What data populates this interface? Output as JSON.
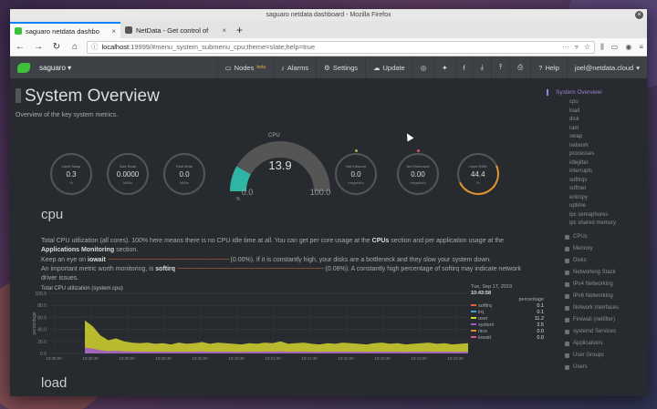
{
  "browser": {
    "window_title": "saguaro netdata dashboard - Mozilla Firefox",
    "tabs": [
      {
        "label": "saguaro netdata dashbo",
        "active": true
      },
      {
        "label": "NetData - Get control of",
        "active": false
      }
    ],
    "url_host": "localhost",
    "url_rest": ":19999/#menu_system_submenu_cpu;theme=slate;help=true"
  },
  "header": {
    "hostname": "saguaro",
    "menu": [
      {
        "label": "Nodes",
        "badge": "beta",
        "icon": "monitor-icon"
      },
      {
        "label": "Alarms",
        "icon": "bell-icon"
      },
      {
        "label": "Settings",
        "icon": "gear-icon"
      },
      {
        "label": "Update",
        "icon": "cloud-icon"
      },
      {
        "label": "Help",
        "icon": "help-icon"
      }
    ],
    "user": "joel@netdata.cloud"
  },
  "page": {
    "title": "System Overview",
    "subtitle": "Overview of the key system metrics."
  },
  "gauges": [
    {
      "label": "Used Swap",
      "value": "0.3",
      "unit": "%"
    },
    {
      "label": "Disk Read",
      "value": "0.0000",
      "unit": "MiB/s"
    },
    {
      "label": "Disk Write",
      "value": "0.0",
      "unit": "MiB/s"
    },
    {
      "label": "Net Inbound",
      "value": "0.0",
      "unit": "megabit/s"
    },
    {
      "label": "Net Outbound",
      "value": "0.00",
      "unit": "megabit/s"
    },
    {
      "label": "Used RAM",
      "value": "44.4",
      "unit": "%"
    }
  ],
  "cpu_gauge": {
    "label": "CPU",
    "value": "13.9",
    "min": "0.0",
    "max": "100.0",
    "unit": "%"
  },
  "cpu_section": {
    "heading": "cpu",
    "desc1": "Total CPU utilization (all cores). 100% here means there is no CPU idle time at all. You can get per core usage at the",
    "desc1_b1": "CPUs",
    "desc1_mid": "section and per application usage at the",
    "desc1_b2": "Applications Monitoring",
    "desc1_end": "section.",
    "desc2_start": "Keep an eye on",
    "desc2_b": "iowait",
    "desc2_val": "(0.00%). If it is constantly high, your disks are a bottleneck and they slow your system down.",
    "desc3_start": "An important metric worth monitoring, is",
    "desc3_b": "softirq",
    "desc3_val": "(0.08%). A constantly high percentage of softirq may indicate network driver issues."
  },
  "chart_data": {
    "type": "area",
    "title": "Total CPU utilization (system.cpu)",
    "ylabel": "percentage",
    "ylim": [
      0,
      100
    ],
    "yticks": [
      "100.0",
      "80.0",
      "60.0",
      "40.0",
      "20.0",
      "0.0"
    ],
    "xticks": [
      "10:38:00",
      "10:38:30",
      "10:39:00",
      "10:39:30",
      "10:40:00",
      "10:40:30",
      "10:41:00",
      "10:41:30",
      "10:42:00",
      "10:42:30",
      "10:43:00",
      "10:43:30"
    ],
    "timestamp_date": "Tue, Sep 17, 2019",
    "timestamp_time": "10:43:58",
    "legend_header": "percentage",
    "series": [
      {
        "name": "softirq",
        "value": "0.1",
        "color": "#e0603c"
      },
      {
        "name": "irq",
        "value": "0.1",
        "color": "#3b9fd9"
      },
      {
        "name": "user",
        "value": "11.2",
        "color": "#d4d42e"
      },
      {
        "name": "system",
        "value": "2.5",
        "color": "#a05ac8"
      },
      {
        "name": "nice",
        "value": "0.0",
        "color": "#e08c3a"
      },
      {
        "name": "iowait",
        "value": "0.0",
        "color": "#d15a9a"
      }
    ],
    "user_series": [
      55,
      45,
      30,
      22,
      25,
      20,
      18,
      17,
      18,
      16,
      17,
      15,
      18,
      16,
      17,
      19,
      16,
      18,
      17,
      16,
      15,
      17,
      16,
      18,
      17,
      20,
      16,
      17,
      18,
      16,
      15,
      17,
      16,
      18,
      17,
      16,
      15,
      17,
      18,
      16,
      17,
      15,
      16,
      17,
      18,
      16,
      17,
      15,
      16,
      17
    ],
    "system_share": 0.18
  },
  "load_heading": "load",
  "sidebar": {
    "active": "System Overview",
    "subs": [
      "cpu",
      "load",
      "disk",
      "ram",
      "swap",
      "network",
      "processes",
      "idlejitter",
      "interrupts",
      "softirqs",
      "softnet",
      "entropy",
      "uptime",
      "ipc semaphores",
      "ipc shared memory"
    ],
    "groups": [
      "CPUs",
      "Memory",
      "Disks",
      "Networking Stack",
      "IPv4 Networking",
      "IPv6 Networking",
      "Network Interfaces",
      "Firewall (netfilter)",
      "systemd Services",
      "Applications",
      "User Groups",
      "Users"
    ]
  }
}
